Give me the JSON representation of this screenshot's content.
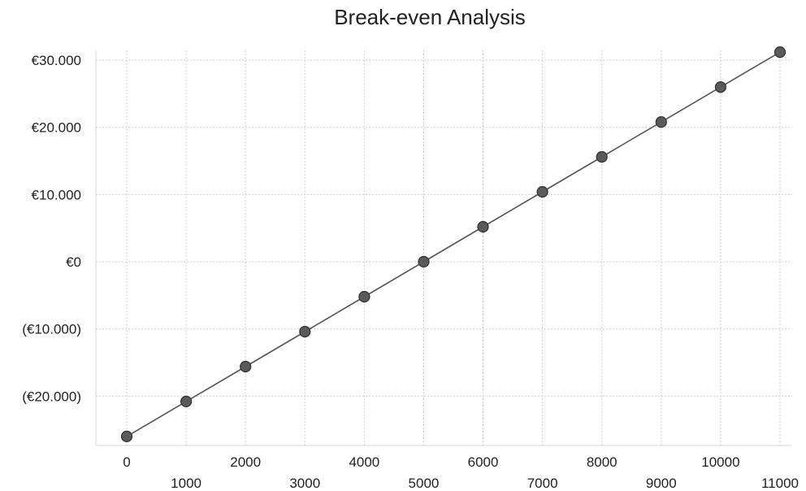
{
  "chart_data": {
    "type": "line",
    "title": "Break-even Analysis",
    "xlabel": "",
    "ylabel": "",
    "x": [
      0,
      1000,
      2000,
      3000,
      4000,
      5000,
      6000,
      7000,
      8000,
      9000,
      10000,
      11000
    ],
    "x_tick_labels": [
      "0",
      "1000",
      "2000",
      "3000",
      "4000",
      "5000",
      "6000",
      "7000",
      "8000",
      "9000",
      "10000",
      "11000"
    ],
    "y_ticks": [
      -20000,
      -10000,
      0,
      10000,
      20000,
      30000
    ],
    "y_tick_labels": [
      "(€20.000)",
      "(€10.000)",
      "€0",
      "€10.000",
      "€20.000",
      "€30.000"
    ],
    "ylim": [
      -27000,
      32000
    ],
    "xlim": [
      -500,
      11000
    ],
    "grid": true,
    "marker": "circle",
    "series": [
      {
        "values": [
          -26000,
          -20800,
          -15600,
          -10400,
          -5200,
          0,
          5200,
          10400,
          15600,
          20800,
          26000,
          31200
        ]
      }
    ],
    "colors": {
      "line": "#555555",
      "marker": "#5a5a5a",
      "grid": "#cfcfcf"
    }
  }
}
